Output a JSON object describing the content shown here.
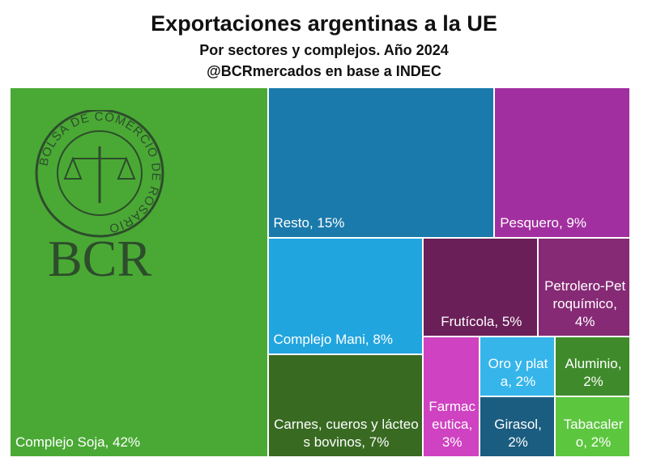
{
  "chart_data": {
    "type": "treemap",
    "title": "Exportaciones argentinas a la UE",
    "subtitle": "Por sectores y complejos. Año 2024",
    "source": "@BCRmercados en base a INDEC",
    "logo_text": "BCR",
    "seal_text": "BOLSA DE COMERCIO DE ROSARIO",
    "values": [
      42,
      15,
      9,
      8,
      5,
      4,
      7,
      3,
      2,
      2,
      2,
      2
    ],
    "value_labels": [
      "Complejo Soja, 42%",
      "Resto, 15%",
      "Pesquero, 9%",
      "Complejo Mani, 8%",
      "Frutícola, 5%",
      "Petrolero-Petroquímico, 4%",
      "Carnes, cueros y lácteos bovinos, 7%",
      "Farmaceutica, 3%",
      "Oro y plata, 2%",
      "Aluminio, 2%",
      "Girasol, 2%",
      "Tabacalero, 2%"
    ],
    "colors": [
      "#4aa935",
      "#1a7aab",
      "#a22f9f",
      "#21a5de",
      "#6a1f58",
      "#862a75",
      "#386a22",
      "#cf42c1",
      "#35b5ea",
      "#3f8b2b",
      "#1b5d80",
      "#5cc63f"
    ]
  }
}
